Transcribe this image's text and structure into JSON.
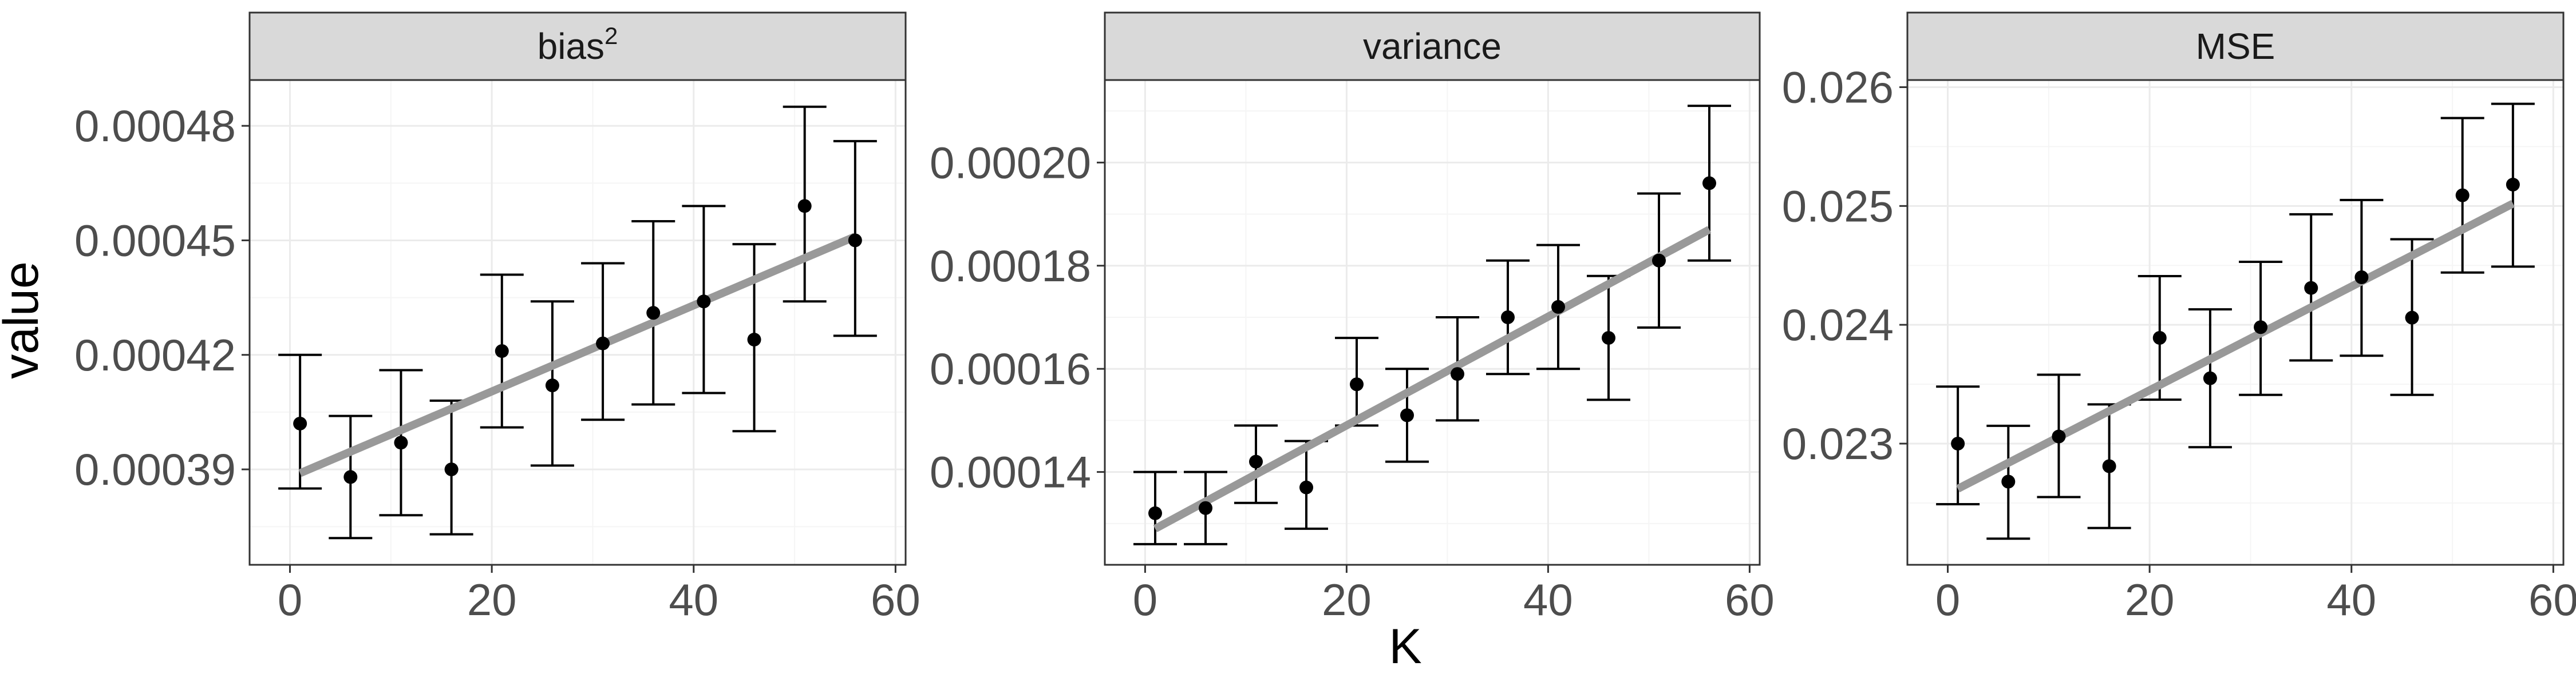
{
  "chart_data": {
    "type": "scatter",
    "xlabel": "K",
    "ylabel": "value",
    "x": [
      1,
      6,
      11,
      16,
      21,
      26,
      31,
      36,
      41,
      46,
      51,
      56
    ],
    "x_ticks": [
      0,
      20,
      40,
      60
    ],
    "x_tick_labels": [
      "0",
      "20",
      "40",
      "60"
    ],
    "xlim": [
      -4,
      61
    ],
    "grid": true,
    "colors": {
      "points": "#000000",
      "trend_line": "#999999",
      "strip_background": "#d9d9d9",
      "grid_major": "#ebebeb",
      "grid_minor": "#f5f5f5",
      "panel_border": "#333333"
    },
    "panels": [
      {
        "strip": "bias",
        "strip_superscript": "2",
        "ylim": [
          0.000365,
          0.000492
        ],
        "y_ticks": [
          0.00039,
          0.00042,
          0.00045,
          0.00048
        ],
        "y_tick_labels": [
          "0.00039",
          "0.00042",
          "0.00045",
          "0.00048"
        ],
        "mean": [
          0.000402,
          0.000388,
          0.000397,
          0.00039,
          0.000421,
          0.000412,
          0.000423,
          0.000431,
          0.000434,
          0.000424,
          0.000459,
          0.00045
        ],
        "lower": [
          0.000385,
          0.000372,
          0.000378,
          0.000373,
          0.000401,
          0.000391,
          0.000403,
          0.000407,
          0.00041,
          0.0004,
          0.000434,
          0.000425
        ],
        "upper": [
          0.00042,
          0.000404,
          0.000416,
          0.000408,
          0.000441,
          0.000434,
          0.000444,
          0.000455,
          0.000459,
          0.000449,
          0.000485,
          0.000476
        ],
        "trend": {
          "x": [
            1,
            56
          ],
          "y": [
            0.000389,
            0.000451
          ]
        }
      },
      {
        "strip": "variance",
        "strip_superscript": "",
        "ylim": [
          0.000122,
          0.000216
        ],
        "y_ticks": [
          0.00014,
          0.00016,
          0.00018,
          0.0002
        ],
        "y_tick_labels": [
          "0.00014",
          "0.00016",
          "0.00018",
          "0.00020"
        ],
        "mean": [
          0.000132,
          0.000133,
          0.000142,
          0.000137,
          0.000157,
          0.000151,
          0.000159,
          0.00017,
          0.000172,
          0.000166,
          0.000181,
          0.000196
        ],
        "lower": [
          0.000126,
          0.000126,
          0.000134,
          0.000129,
          0.000149,
          0.000142,
          0.00015,
          0.000159,
          0.00016,
          0.000154,
          0.000168,
          0.000181
        ],
        "upper": [
          0.00014,
          0.00014,
          0.000149,
          0.000146,
          0.000166,
          0.00016,
          0.00017,
          0.000181,
          0.000184,
          0.000178,
          0.000194,
          0.000211
        ],
        "trend": {
          "x": [
            1,
            56
          ],
          "y": [
            0.000129,
            0.000187
          ]
        }
      },
      {
        "strip": "MSE",
        "strip_superscript": "",
        "ylim": [
          0.02198,
          0.02606
        ],
        "y_ticks": [
          0.023,
          0.024,
          0.025,
          0.026
        ],
        "y_tick_labels": [
          "0.023",
          "0.024",
          "0.025",
          "0.026"
        ],
        "mean": [
          0.023,
          0.02268,
          0.02306,
          0.02281,
          0.02389,
          0.02355,
          0.02398,
          0.02431,
          0.0244,
          0.02406,
          0.02509,
          0.02518
        ],
        "lower": [
          0.02249,
          0.0222,
          0.02255,
          0.02229,
          0.02337,
          0.02297,
          0.02341,
          0.0237,
          0.02374,
          0.02341,
          0.02444,
          0.02449
        ],
        "upper": [
          0.02348,
          0.02315,
          0.02358,
          0.02333,
          0.02441,
          0.02413,
          0.02453,
          0.02493,
          0.02505,
          0.02472,
          0.02574,
          0.02586
        ],
        "trend": {
          "x": [
            1,
            56
          ],
          "y": [
            0.02262,
            0.02502
          ]
        }
      }
    ]
  }
}
